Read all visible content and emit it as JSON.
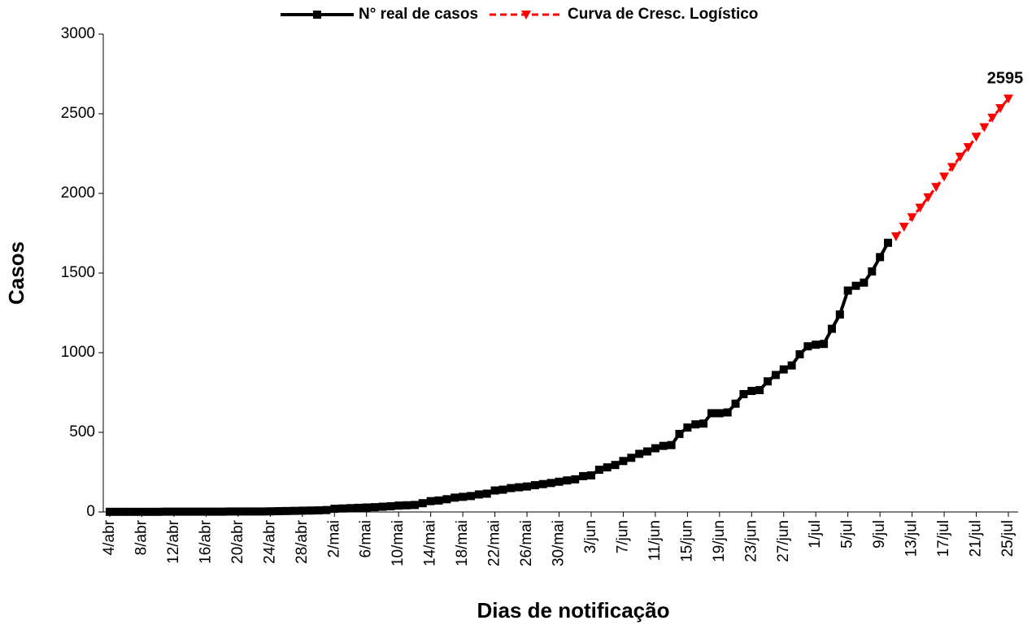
{
  "chart_data": {
    "type": "line",
    "xlabel": "Dias de notificação",
    "ylabel": "Casos",
    "categories": [
      "4/abr",
      null,
      null,
      null,
      "8/abr",
      null,
      null,
      null,
      "12/abr",
      null,
      null,
      null,
      "16/abr",
      null,
      null,
      null,
      "20/abr",
      null,
      null,
      null,
      "24/abr",
      null,
      null,
      null,
      "28/abr",
      null,
      null,
      null,
      "2/mai",
      null,
      null,
      null,
      "6/mai",
      null,
      null,
      null,
      "10/mai",
      null,
      null,
      null,
      "14/mai",
      null,
      null,
      null,
      "18/mai",
      null,
      null,
      null,
      "22/mai",
      null,
      null,
      null,
      "26/mai",
      null,
      null,
      null,
      "30/mai",
      null,
      null,
      null,
      "3/jun",
      null,
      null,
      null,
      "7/jun",
      null,
      null,
      null,
      "11/jun",
      null,
      null,
      null,
      "15/jun",
      null,
      null,
      null,
      "19/jun",
      null,
      null,
      null,
      "23/jun",
      null,
      null,
      null,
      "27/jun",
      null,
      null,
      null,
      "1/jul",
      null,
      null,
      null,
      "5/jul",
      null,
      null,
      null,
      "9/jul",
      null,
      null,
      null,
      "13/jul",
      null,
      null,
      null,
      "17/jul",
      null,
      null,
      null,
      "21/jul",
      null,
      null,
      null,
      "25/jul"
    ],
    "series": [
      {
        "name": "N° real de casos",
        "color": "#000000",
        "marker": "square",
        "dashed": false,
        "values": [
          1,
          1,
          1,
          1,
          1,
          1,
          1,
          2,
          2,
          2,
          2,
          2,
          2,
          2,
          2,
          3,
          3,
          3,
          3,
          3,
          4,
          5,
          6,
          7,
          8,
          9,
          10,
          12,
          20,
          22,
          24,
          26,
          28,
          30,
          33,
          36,
          40,
          42,
          44,
          55,
          68,
          72,
          80,
          90,
          95,
          100,
          110,
          115,
          135,
          140,
          150,
          155,
          160,
          168,
          175,
          182,
          190,
          198,
          205,
          225,
          230,
          265,
          280,
          295,
          320,
          340,
          365,
          380,
          400,
          415,
          420,
          490,
          530,
          550,
          555,
          620,
          620,
          625,
          680,
          740,
          760,
          765,
          820,
          860,
          895,
          920,
          990,
          1040,
          1050,
          1055,
          1150,
          1240,
          1390,
          1420,
          1440,
          1510,
          1600,
          1690,
          null,
          null,
          null,
          null,
          null,
          null,
          null,
          null,
          null,
          null,
          null,
          null,
          null,
          null,
          null
        ]
      },
      {
        "name": "Curva de Cresc. Logístico",
        "color": "#ff0000",
        "marker": "triangle-down",
        "dashed": true,
        "values": [
          null,
          null,
          null,
          null,
          null,
          null,
          null,
          null,
          null,
          null,
          null,
          null,
          null,
          null,
          null,
          null,
          null,
          null,
          null,
          null,
          null,
          null,
          null,
          null,
          null,
          null,
          null,
          null,
          null,
          null,
          null,
          null,
          null,
          null,
          null,
          null,
          null,
          null,
          null,
          null,
          null,
          null,
          null,
          null,
          null,
          null,
          null,
          null,
          null,
          null,
          null,
          null,
          null,
          null,
          null,
          null,
          null,
          null,
          null,
          null,
          null,
          null,
          null,
          null,
          null,
          null,
          null,
          null,
          null,
          null,
          null,
          null,
          null,
          null,
          null,
          null,
          null,
          null,
          null,
          null,
          null,
          null,
          null,
          null,
          null,
          null,
          null,
          null,
          null,
          null,
          null,
          null,
          null,
          null,
          null,
          null,
          null,
          null,
          1730,
          1790,
          1850,
          1910,
          1975,
          2040,
          2105,
          2165,
          2230,
          2290,
          2355,
          2415,
          2475,
          2535,
          2595
        ]
      }
    ],
    "ylim": [
      0,
      3000
    ],
    "yticks": [
      0,
      500,
      1000,
      1500,
      2000,
      2500,
      3000
    ],
    "legend": "top",
    "grid": false
  }
}
